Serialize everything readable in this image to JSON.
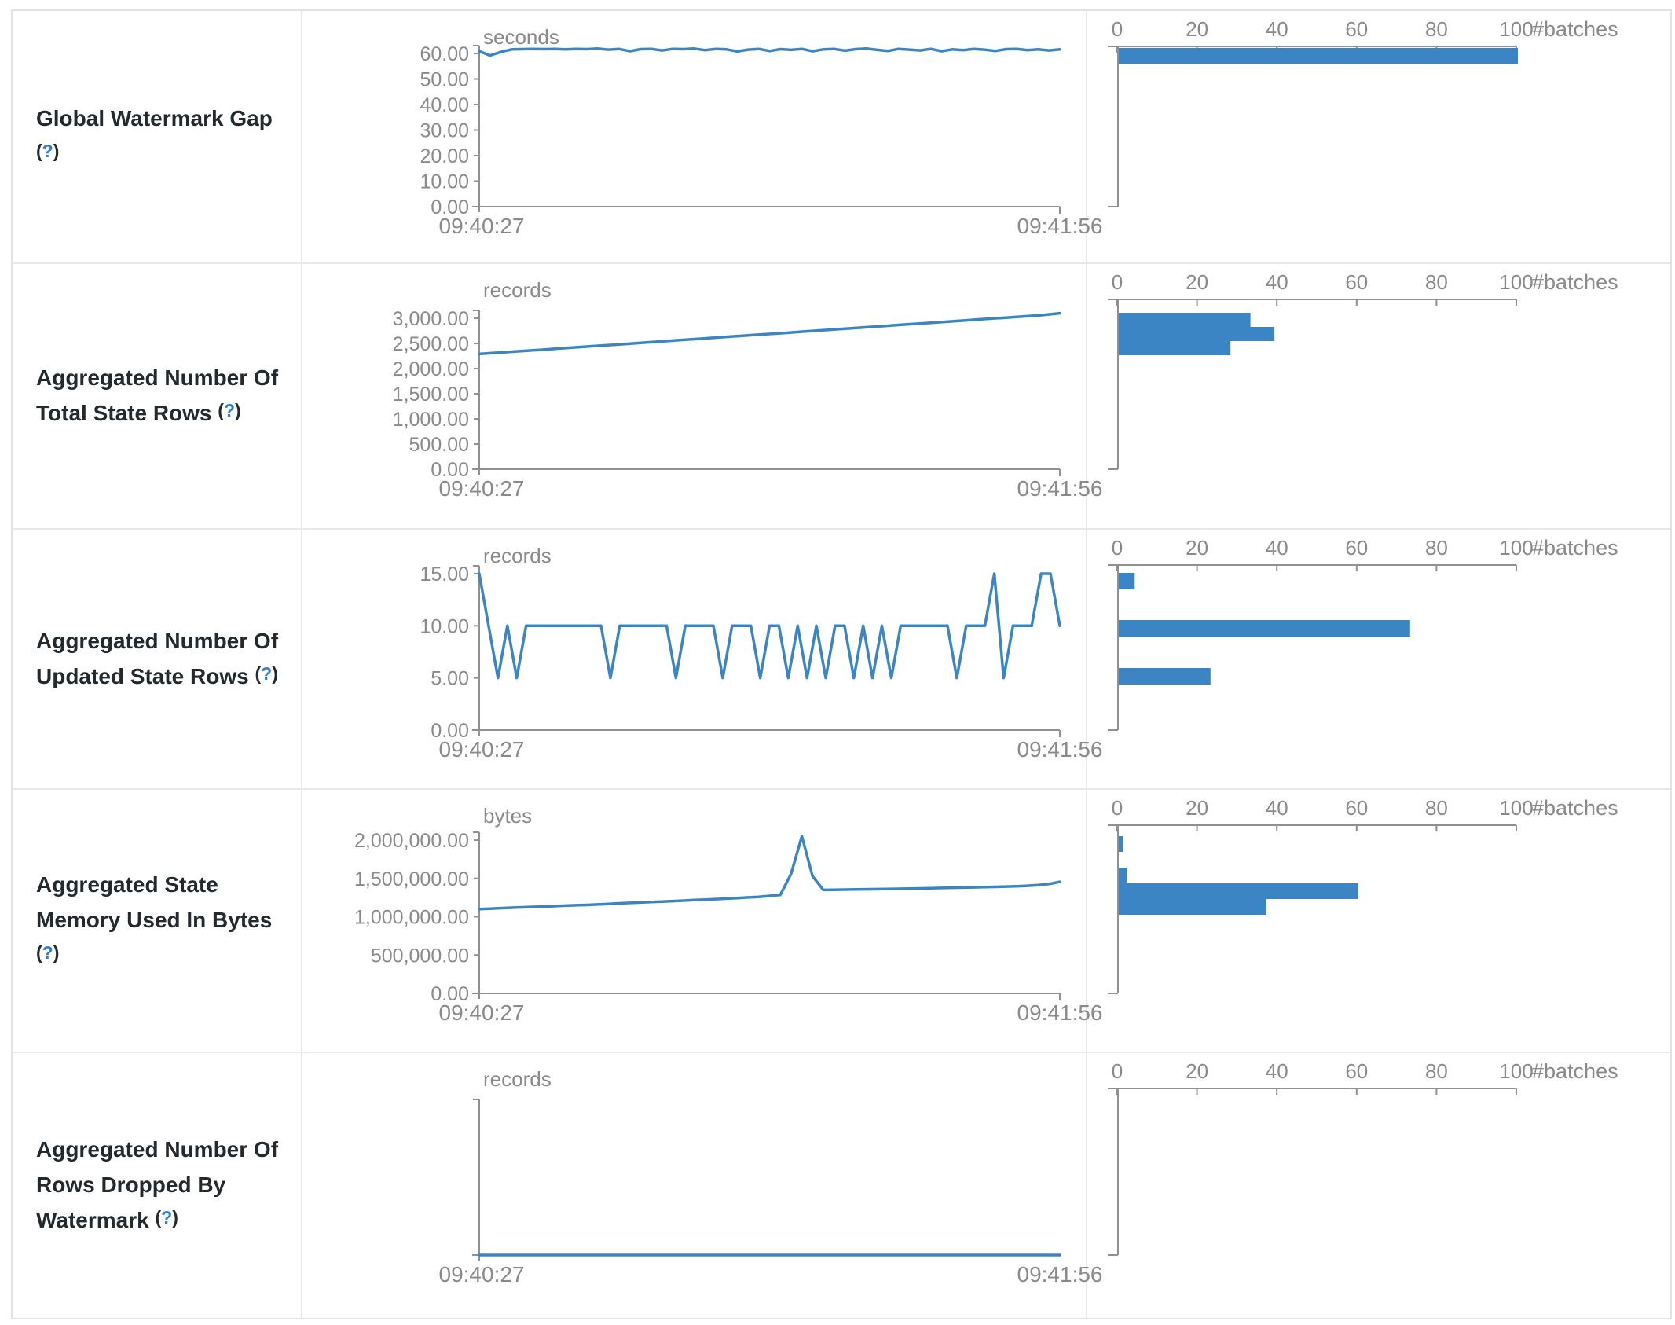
{
  "palette": {
    "accent_blue": "#3c85c5",
    "axis_gray": "#909090",
    "text_gray": "#8a8a8a",
    "label_dark": "#24292e",
    "help_blue": "#2d7de0",
    "border_gray": "#e6e8ea"
  },
  "misc": {
    "paren_open": "(",
    "question": "?",
    "paren_close": ")"
  },
  "chart_data": [
    {
      "metric": "Global Watermark Gap",
      "timeline": {
        "type": "line",
        "unit": "seconds",
        "x_start": "09:40:27",
        "x_end": "09:41:56",
        "y_ticks": [
          {
            "v": 60,
            "label": "60.00"
          },
          {
            "v": 50,
            "label": "50.00"
          },
          {
            "v": 40,
            "label": "40.00"
          },
          {
            "v": 30,
            "label": "30.00"
          },
          {
            "v": 20,
            "label": "20.00"
          },
          {
            "v": 10,
            "label": "10.00"
          },
          {
            "v": 0,
            "label": "0.00"
          }
        ],
        "values": [
          60.9,
          59.2,
          60.6,
          61.6,
          61.7,
          61.8,
          61.7,
          61.8,
          61.6,
          61.8,
          61.7,
          61.9,
          61.5,
          61.8,
          60.9,
          61.7,
          61.8,
          61.2,
          61.8,
          61.7,
          61.9,
          61.3,
          61.8,
          61.6,
          60.8,
          61.5,
          61.8,
          61.0,
          61.7,
          61.4,
          61.8,
          60.9,
          61.6,
          61.8,
          61.1,
          61.7,
          61.9,
          61.4,
          61.0,
          61.8,
          61.5,
          61.2,
          61.8,
          60.9,
          61.6,
          61.3,
          61.8,
          61.5,
          61.0,
          61.7,
          61.8,
          61.3,
          61.6,
          61.2,
          61.6
        ]
      },
      "histogram": {
        "type": "bar",
        "orientation": "horizontal",
        "unit": "#batches",
        "x_tick_labels": [
          "0",
          "20",
          "40",
          "60",
          "80",
          "100"
        ],
        "x_tick_values": [
          0,
          20,
          40,
          60,
          80,
          100
        ],
        "bars": [
          {
            "count": 100,
            "at_value": 61
          }
        ]
      }
    },
    {
      "metric": "Aggregated Number Of Total State Rows",
      "timeline": {
        "type": "line",
        "unit": "records",
        "x_start": "09:40:27",
        "x_end": "09:41:56",
        "y_ticks": [
          {
            "v": 3000,
            "label": "3,000.00"
          },
          {
            "v": 2500,
            "label": "2,500.00"
          },
          {
            "v": 2000,
            "label": "2,000.00"
          },
          {
            "v": 1500,
            "label": "1,500.00"
          },
          {
            "v": 1000,
            "label": "1,000.00"
          },
          {
            "v": 500,
            "label": "500.00"
          },
          {
            "v": 0,
            "label": "0.00"
          }
        ],
        "values": [
          2290,
          2318,
          2345,
          2372,
          2400,
          2428,
          2455,
          2482,
          2510,
          2538,
          2565,
          2592,
          2620,
          2648,
          2675,
          2702,
          2730,
          2758,
          2785,
          2812,
          2840,
          2868,
          2895,
          2922,
          2950,
          2978,
          3005,
          3032,
          3060,
          3100
        ]
      },
      "histogram": {
        "type": "bar",
        "orientation": "horizontal",
        "unit": "#batches",
        "x_tick_labels": [
          "0",
          "20",
          "40",
          "60",
          "80",
          "100"
        ],
        "x_tick_values": [
          0,
          20,
          40,
          60,
          80,
          100
        ],
        "bars": [
          {
            "count": 33,
            "at_value": 2970
          },
          {
            "count": 39,
            "at_value": 2670
          },
          {
            "count": 28,
            "at_value": 2375
          }
        ]
      }
    },
    {
      "metric": "Aggregated Number Of Updated State Rows",
      "timeline": {
        "type": "line",
        "unit": "records",
        "x_start": "09:40:27",
        "x_end": "09:41:56",
        "y_ticks": [
          {
            "v": 15,
            "label": "15.00"
          },
          {
            "v": 10,
            "label": "10.00"
          },
          {
            "v": 5,
            "label": "5.00"
          },
          {
            "v": 0,
            "label": "0.00"
          }
        ],
        "values": [
          15,
          10,
          5,
          10,
          5,
          10,
          10,
          10,
          10,
          10,
          10,
          10,
          10,
          10,
          5,
          10,
          10,
          10,
          10,
          10,
          10,
          5,
          10,
          10,
          10,
          10,
          5,
          10,
          10,
          10,
          5,
          10,
          10,
          5,
          10,
          5,
          10,
          5,
          10,
          10,
          5,
          10,
          5,
          10,
          5,
          10,
          10,
          10,
          10,
          10,
          10,
          5,
          10,
          10,
          10,
          15,
          5,
          10,
          10,
          10,
          15,
          15,
          10
        ]
      },
      "histogram": {
        "type": "bar",
        "orientation": "horizontal",
        "unit": "#batches",
        "x_tick_labels": [
          "0",
          "20",
          "40",
          "60",
          "80",
          "100"
        ],
        "x_tick_values": [
          0,
          20,
          40,
          60,
          80,
          100
        ],
        "bars": [
          {
            "count": 4,
            "at_value": 15
          },
          {
            "count": 73,
            "at_value": 10
          },
          {
            "count": 23,
            "at_value": 5
          }
        ]
      }
    },
    {
      "metric": "Aggregated State Memory Used In Bytes",
      "timeline": {
        "type": "line",
        "unit": "bytes",
        "x_start": "09:40:27",
        "x_end": "09:41:56",
        "y_ticks": [
          {
            "v": 2000000,
            "label": "2,000,000.00"
          },
          {
            "v": 1500000,
            "label": "1,500,000.00"
          },
          {
            "v": 1000000,
            "label": "1,000,000.00"
          },
          {
            "v": 500000,
            "label": "500,000.00"
          },
          {
            "v": 0,
            "label": "0.00"
          }
        ],
        "values": [
          1100000,
          1106000,
          1112000,
          1118000,
          1123000,
          1128000,
          1132000,
          1138000,
          1145000,
          1150000,
          1154000,
          1160000,
          1167000,
          1174000,
          1180000,
          1186000,
          1192000,
          1198000,
          1204000,
          1210000,
          1217000,
          1224000,
          1230000,
          1237000,
          1244000,
          1252000,
          1260000,
          1272000,
          1285000,
          1560000,
          2050000,
          1530000,
          1350000,
          1352000,
          1354000,
          1356000,
          1358000,
          1360000,
          1362000,
          1364000,
          1366000,
          1369000,
          1372000,
          1375000,
          1378000,
          1381000,
          1384000,
          1387000,
          1390000,
          1394000,
          1398000,
          1404000,
          1412000,
          1428000,
          1455000
        ]
      },
      "histogram": {
        "type": "bar",
        "orientation": "horizontal",
        "unit": "#batches",
        "x_tick_labels": [
          "0",
          "20",
          "40",
          "60",
          "80",
          "100"
        ],
        "x_tick_values": [
          0,
          20,
          40,
          60,
          80,
          100
        ],
        "bars": [
          {
            "count": 1,
            "at_value": 1940000
          },
          {
            "count": 2,
            "at_value": 1540000
          },
          {
            "count": 60,
            "at_value": 1330000
          },
          {
            "count": 37,
            "at_value": 1130000
          }
        ]
      }
    },
    {
      "metric": "Aggregated Number Of Rows Dropped By Watermark",
      "timeline": {
        "type": "line",
        "unit": "records",
        "x_start": "09:40:27",
        "x_end": "09:41:56",
        "y_ticks": [],
        "values": [
          0,
          0,
          0,
          0,
          0,
          0,
          0,
          0,
          0,
          0,
          0,
          0,
          0,
          0,
          0,
          0,
          0,
          0,
          0,
          0,
          0,
          0,
          0,
          0,
          0,
          0,
          0,
          0,
          0,
          0,
          0,
          0,
          0,
          0,
          0,
          0,
          0,
          0,
          0,
          0
        ]
      },
      "histogram": {
        "type": "bar",
        "orientation": "horizontal",
        "unit": "#batches",
        "x_tick_labels": [
          "0",
          "20",
          "40",
          "60",
          "80",
          "100"
        ],
        "x_tick_values": [
          0,
          20,
          40,
          60,
          80,
          100
        ],
        "bars": []
      }
    }
  ]
}
